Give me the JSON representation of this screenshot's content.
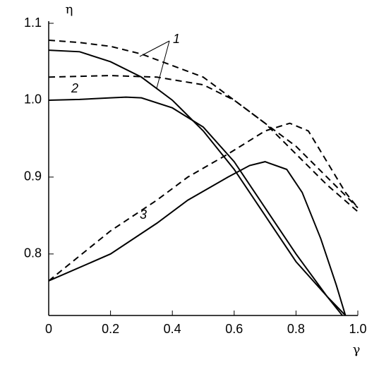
{
  "chart_data": {
    "type": "line",
    "x_label": "γ",
    "y_label": "η",
    "xlim": [
      0,
      1
    ],
    "ylim": [
      0.72,
      1.1
    ],
    "xticks": [
      0,
      0.2,
      0.4,
      0.6,
      0.8,
      {
        "value": 1,
        "label": "1.0"
      }
    ],
    "yticks": [
      0.8,
      0.9,
      {
        "value": 1,
        "label": "1.0"
      },
      1.1
    ],
    "annotations": [
      "1",
      "2",
      "3"
    ],
    "series": [
      {
        "color": "#000000",
        "style": "solid",
        "x": [
          0,
          0.1,
          0.2,
          0.3,
          0.4,
          0.5,
          0.6,
          0.7,
          0.8,
          0.9,
          0.95
        ],
        "values": [
          1.065,
          1.063,
          1.05,
          1.03,
          1.0,
          0.96,
          0.91,
          0.85,
          0.79,
          0.745,
          0.72
        ]
      },
      {
        "color": "#000000",
        "style": "solid",
        "x": [
          0,
          0.1,
          0.2,
          0.25,
          0.3,
          0.4,
          0.5,
          0.6,
          0.7,
          0.8,
          0.9,
          0.96
        ],
        "values": [
          1.0,
          1.001,
          1.003,
          1.004,
          1.003,
          0.99,
          0.965,
          0.92,
          0.86,
          0.8,
          0.745,
          0.72
        ]
      },
      {
        "color": "#000000",
        "style": "solid",
        "x": [
          0,
          0.2,
          0.35,
          0.45,
          0.58,
          0.65,
          0.7,
          0.77,
          0.82,
          0.88,
          0.93,
          0.96
        ],
        "values": [
          0.765,
          0.8,
          0.84,
          0.87,
          0.9,
          0.915,
          0.92,
          0.91,
          0.88,
          0.82,
          0.76,
          0.72
        ]
      },
      {
        "color": "#000000",
        "style": "dashed",
        "x": [
          0,
          0.1,
          0.2,
          0.3,
          0.4,
          0.5,
          0.6,
          0.7,
          0.8,
          0.9,
          1.0
        ],
        "values": [
          1.078,
          1.075,
          1.07,
          1.06,
          1.045,
          1.03,
          1.0,
          0.97,
          0.94,
          0.9,
          0.86
        ]
      },
      {
        "color": "#000000",
        "style": "dashed",
        "x": [
          0,
          0.2,
          0.35,
          0.5,
          0.6,
          0.7,
          0.8,
          0.9,
          1.0
        ],
        "values": [
          1.03,
          1.032,
          1.03,
          1.02,
          1.0,
          0.97,
          0.93,
          0.89,
          0.855
        ]
      },
      {
        "color": "#000000",
        "style": "dashed",
        "x": [
          0,
          0.2,
          0.35,
          0.45,
          0.58,
          0.7,
          0.78,
          0.84,
          0.9,
          0.96,
          1.0
        ],
        "values": [
          0.765,
          0.83,
          0.87,
          0.9,
          0.93,
          0.96,
          0.97,
          0.96,
          0.92,
          0.88,
          0.86
        ]
      }
    ]
  }
}
